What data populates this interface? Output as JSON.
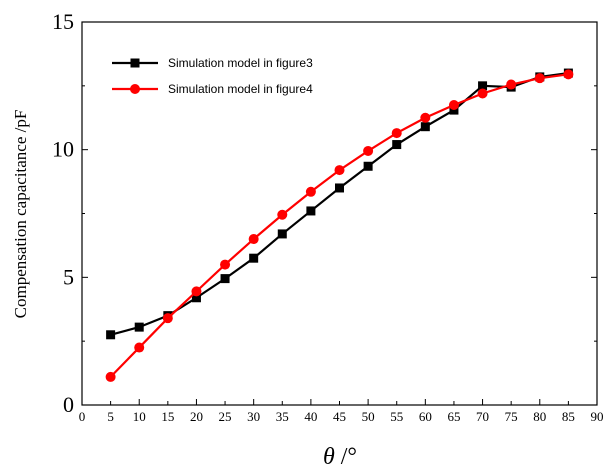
{
  "chart_data": {
    "type": "line",
    "title": "",
    "xlabel_symbol": "θ",
    "xlabel_unit": " /°",
    "ylabel": "Compensation capacitance /pF",
    "xlim": [
      0,
      90
    ],
    "ylim": [
      0,
      15
    ],
    "x_ticks": [
      0,
      5,
      10,
      15,
      20,
      25,
      30,
      35,
      40,
      45,
      50,
      55,
      60,
      65,
      70,
      75,
      80,
      85,
      90
    ],
    "y_ticks": [
      0,
      5,
      10,
      15
    ],
    "grid": false,
    "legend_position": "top-left",
    "series": [
      {
        "name": "Simulation model in figure3",
        "color": "#000000",
        "marker": "square",
        "x": [
          5,
          10,
          15,
          20,
          25,
          30,
          35,
          40,
          45,
          50,
          55,
          60,
          65,
          70,
          75,
          80,
          85
        ],
        "y": [
          2.75,
          3.05,
          3.5,
          4.2,
          4.95,
          5.75,
          6.7,
          7.6,
          8.5,
          9.35,
          10.2,
          10.9,
          11.55,
          12.5,
          12.45,
          12.85,
          13.0
        ]
      },
      {
        "name": "Simulation model in figure4",
        "color": "#ff0000",
        "marker": "circle",
        "x": [
          5,
          10,
          15,
          20,
          25,
          30,
          35,
          40,
          45,
          50,
          55,
          60,
          65,
          70,
          75,
          80,
          85
        ],
        "y": [
          1.1,
          2.25,
          3.4,
          4.45,
          5.5,
          6.5,
          7.45,
          8.35,
          9.2,
          9.95,
          10.65,
          11.25,
          11.75,
          12.2,
          12.55,
          12.8,
          12.95
        ]
      }
    ]
  }
}
